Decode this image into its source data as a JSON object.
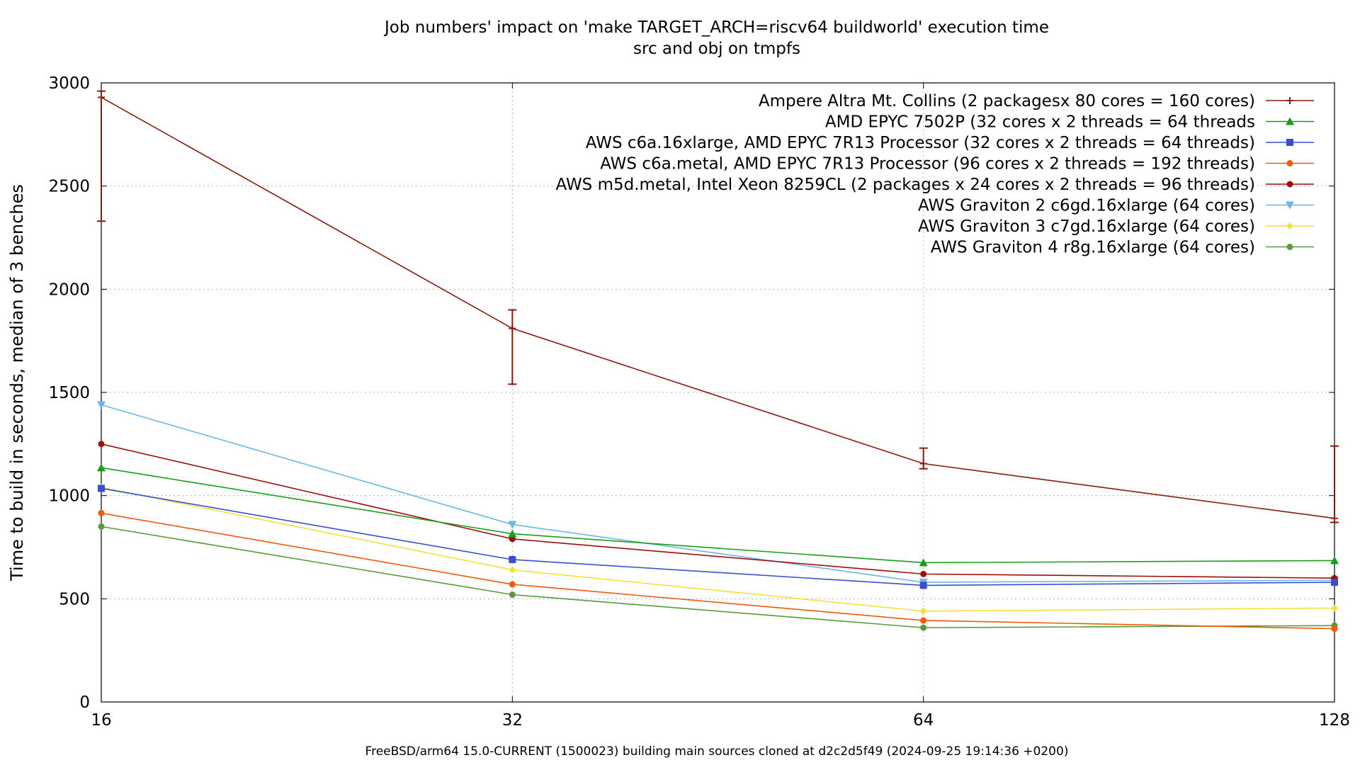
{
  "chart_data": {
    "type": "line",
    "title": "Job numbers' impact on 'make TARGET_ARCH=riscv64 buildworld' execution time",
    "subtitle": "src and obj on tmpfs",
    "xlabel": "",
    "ylabel": "Time to build in seconds, median of 3 benches",
    "footer": "FreeBSD/arm64 15.0-CURRENT (1500023) building main sources cloned at d2c2d5f49 (2024-09-25 19:14:36 +0200)",
    "x_scale": "log2",
    "x": [
      16,
      32,
      64,
      128
    ],
    "x_ticks": [
      "16",
      "32",
      "64",
      "128"
    ],
    "ylim": [
      0,
      3000
    ],
    "y_ticks": [
      "0",
      "500",
      "1000",
      "1500",
      "2000",
      "2500",
      "3000"
    ],
    "grid": true,
    "legend_position": "top-right",
    "series": [
      {
        "name": "Ampere Altra Mt. Collins (2 packagesx 80 cores = 160 cores)",
        "color": "#8b1a0e",
        "marker": "plus",
        "values": [
          2930,
          1810,
          1155,
          890
        ],
        "error": [
          [
            2330,
            2960
          ],
          [
            1540,
            1900
          ],
          [
            1130,
            1230
          ],
          [
            870,
            1240
          ]
        ]
      },
      {
        "name": "AMD EPYC 7502P (32 cores x 2 threads = 64 threads",
        "color": "#1a9e1a",
        "marker": "triangle",
        "values": [
          1135,
          815,
          675,
          685
        ]
      },
      {
        "name": "AWS c6a.16xlarge, AMD EPYC 7R13 Processor (32 cores x 2 threads = 64 threads)",
        "color": "#3a4fcf",
        "marker": "square",
        "values": [
          1035,
          690,
          565,
          580
        ]
      },
      {
        "name": "AWS c6a.metal, AMD EPYC 7R13 Processor (96 cores x 2 threads = 192 threads)",
        "color": "#f05a0a",
        "marker": "circle",
        "values": [
          915,
          570,
          395,
          355
        ]
      },
      {
        "name": "AWS m5d.metal, Intel Xeon 8259CL (2 packages x 24 cores x 2 threads = 96 threads)",
        "color": "#a00d0d",
        "marker": "circle",
        "values": [
          1250,
          790,
          620,
          600
        ]
      },
      {
        "name": "AWS Graviton 2 c6gd.16xlarge (64 cores)",
        "color": "#6bb6e8",
        "marker": "triangle-down",
        "values": [
          1440,
          860,
          580,
          590
        ]
      },
      {
        "name": "AWS Graviton 3 c7gd.16xlarge (64 cores)",
        "color": "#f2e23a",
        "marker": "diamond",
        "values": [
          1040,
          640,
          440,
          455
        ]
      },
      {
        "name": "AWS Graviton 4 r8g.16xlarge (64 cores)",
        "color": "#5a9a3a",
        "marker": "circle",
        "values": [
          850,
          520,
          360,
          370
        ]
      }
    ]
  }
}
